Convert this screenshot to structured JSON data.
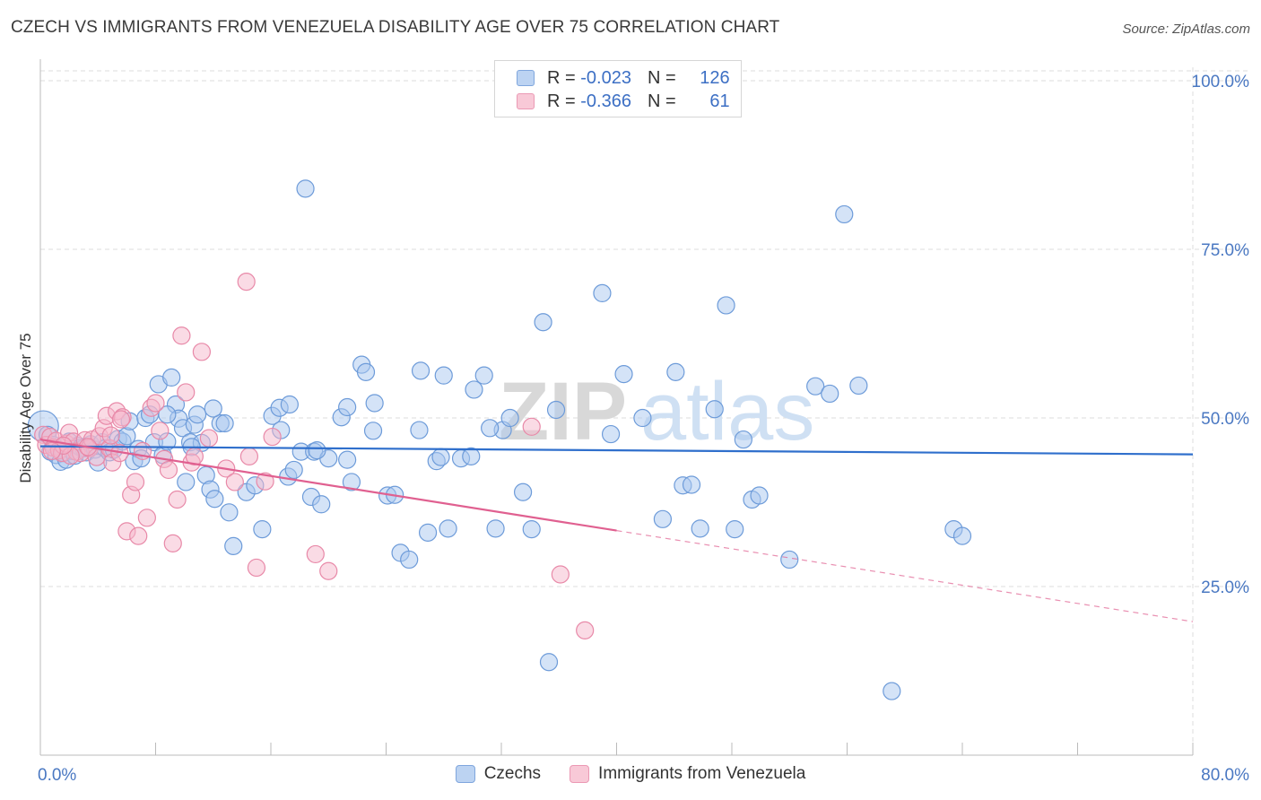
{
  "title": "CZECH VS IMMIGRANTS FROM VENEZUELA DISABILITY AGE OVER 75 CORRELATION CHART",
  "source": "Source: ZipAtlas.com",
  "watermark": {
    "part1": "ZIP",
    "part2": "atlas"
  },
  "legend": {
    "czechs": {
      "r_label": "R =",
      "r_value": "-0.023",
      "n_label": "N =",
      "n_value": "126"
    },
    "venezuela": {
      "r_label": "R =",
      "r_value": "-0.366",
      "n_label": "N =",
      "n_value": "61"
    }
  },
  "colors": {
    "czech_fill": "#a9c7ef",
    "czech_stroke": "#6d9bd9",
    "czech_line": "#2f6fcc",
    "ven_fill": "#f5b8cb",
    "ven_stroke": "#e889a8",
    "ven_line": "#e06090",
    "grid": "#dedede",
    "tick_text": "#4a78c2"
  },
  "chart_data": {
    "type": "scatter",
    "title": "CZECH VS IMMIGRANTS FROM VENEZUELA DISABILITY AGE OVER 75 CORRELATION CHART",
    "xlabel": "",
    "ylabel": "Disability Age Over 75",
    "xlim": [
      0,
      80
    ],
    "ylim": [
      0,
      102
    ],
    "x_tick_labels": [
      {
        "value": 0,
        "label": "0.0%"
      },
      {
        "value": 80,
        "label": "80.0%"
      }
    ],
    "y_tick_labels": [
      {
        "value": 25,
        "label": "25.0%"
      },
      {
        "value": 50,
        "label": "50.0%"
      },
      {
        "value": 75,
        "label": "75.0%"
      },
      {
        "value": 100,
        "label": "100.0%"
      }
    ],
    "grid": true,
    "series": [
      {
        "name": "Czechs",
        "trend": {
          "x": [
            0,
            80
          ],
          "y": [
            45.8,
            44.6
          ],
          "dashed_from": null
        },
        "points": [
          [
            0.2,
            48.8
          ],
          [
            0.5,
            47.5
          ],
          [
            0.7,
            45
          ],
          [
            0.9,
            46
          ],
          [
            1.1,
            44.5
          ],
          [
            1.3,
            45.3
          ],
          [
            1.4,
            43.5
          ],
          [
            1.6,
            44.8
          ],
          [
            1.8,
            43.8
          ],
          [
            2,
            46.5
          ],
          [
            2.2,
            45.1
          ],
          [
            2.4,
            44.4
          ],
          [
            2.6,
            45.9
          ],
          [
            2.8,
            45.6
          ],
          [
            3,
            45.5
          ],
          [
            3.2,
            44.9
          ],
          [
            3.5,
            46.1
          ],
          [
            3.8,
            45.3
          ],
          [
            4,
            43.4
          ],
          [
            4.3,
            46.4
          ],
          [
            4.5,
            45.5
          ],
          [
            4.8,
            44.9
          ],
          [
            5.1,
            45.3
          ],
          [
            5.4,
            46.9
          ],
          [
            5.7,
            46.5
          ],
          [
            6,
            47.3
          ],
          [
            6.2,
            49.5
          ],
          [
            6.5,
            43.6
          ],
          [
            6.8,
            45.4
          ],
          [
            7,
            44
          ],
          [
            7.3,
            50
          ],
          [
            7.6,
            50.5
          ],
          [
            7.9,
            46.4
          ],
          [
            8.2,
            55
          ],
          [
            8.5,
            44.5
          ],
          [
            8.8,
            46.5
          ],
          [
            9.1,
            56
          ],
          [
            9.4,
            52
          ],
          [
            9.6,
            49.9
          ],
          [
            9.9,
            48.5
          ],
          [
            10.1,
            40.5
          ],
          [
            10.4,
            46.4
          ],
          [
            10.7,
            49
          ],
          [
            10.9,
            50.5
          ],
          [
            11.2,
            46.3
          ],
          [
            11.5,
            41.5
          ],
          [
            11.8,
            39.4
          ],
          [
            12.1,
            38
          ],
          [
            12.5,
            49.2
          ],
          [
            12.8,
            49.2
          ],
          [
            13.1,
            36
          ],
          [
            13.4,
            31
          ],
          [
            14.3,
            39
          ],
          [
            14.9,
            40
          ],
          [
            15.4,
            33.5
          ],
          [
            16.1,
            50.3
          ],
          [
            16.6,
            51.5
          ],
          [
            17.2,
            41.3
          ],
          [
            17.6,
            42.3
          ],
          [
            18.1,
            45
          ],
          [
            18.4,
            84
          ],
          [
            18.8,
            38.3
          ],
          [
            19,
            45
          ],
          [
            19.5,
            37.2
          ],
          [
            20,
            44
          ],
          [
            20.9,
            50.1
          ],
          [
            21.3,
            51.6
          ],
          [
            21.6,
            40.5
          ],
          [
            22.3,
            57.9
          ],
          [
            22.6,
            56.8
          ],
          [
            23.2,
            52.2
          ],
          [
            24.1,
            38.5
          ],
          [
            24.6,
            38.6
          ],
          [
            25,
            30
          ],
          [
            25.6,
            29
          ],
          [
            26.4,
            57
          ],
          [
            26.9,
            33
          ],
          [
            27.5,
            43.6
          ],
          [
            28,
            56.3
          ],
          [
            28.3,
            33.6
          ],
          [
            29.2,
            44
          ],
          [
            30.1,
            54.2
          ],
          [
            30.8,
            56.3
          ],
          [
            31.6,
            33.6
          ],
          [
            32.1,
            48.2
          ],
          [
            32.6,
            50
          ],
          [
            33.5,
            39
          ],
          [
            34.1,
            33.5
          ],
          [
            34.9,
            64.2
          ],
          [
            35.3,
            13.8
          ],
          [
            35.8,
            51.2
          ],
          [
            39,
            68.5
          ],
          [
            39.6,
            47.6
          ],
          [
            40.5,
            56.5
          ],
          [
            41.8,
            50
          ],
          [
            43.2,
            35
          ],
          [
            44.1,
            56.8
          ],
          [
            44.6,
            40
          ],
          [
            45.2,
            40.1
          ],
          [
            45.8,
            33.6
          ],
          [
            46.8,
            51.3
          ],
          [
            47.6,
            66.7
          ],
          [
            48.2,
            33.5
          ],
          [
            48.8,
            46.8
          ],
          [
            49.4,
            37.9
          ],
          [
            49.9,
            38.5
          ],
          [
            52,
            29
          ],
          [
            53.8,
            54.7
          ],
          [
            54.8,
            53.6
          ],
          [
            55.8,
            80.2
          ],
          [
            56.8,
            54.8
          ],
          [
            59.1,
            9.5
          ],
          [
            63.4,
            33.5
          ],
          [
            64,
            32.5
          ],
          [
            17.3,
            52
          ],
          [
            27.8,
            44.2
          ],
          [
            29.9,
            44.3
          ],
          [
            16.7,
            48.2
          ],
          [
            8.8,
            50.5
          ],
          [
            10.5,
            45.7
          ],
          [
            12,
            51.4
          ],
          [
            19.2,
            45.2
          ],
          [
            21.3,
            43.8
          ],
          [
            26.3,
            48.2
          ],
          [
            31.2,
            48.5
          ],
          [
            23.1,
            48.1
          ]
        ]
      },
      {
        "name": "Immigrants from Venezuela",
        "trend": {
          "x": [
            0,
            80
          ],
          "y": [
            46.8,
            19.8
          ],
          "dashed_from": 40
        },
        "points": [
          [
            0.2,
            47.5
          ],
          [
            0.4,
            46
          ],
          [
            0.7,
            47.2
          ],
          [
            0.9,
            45.6
          ],
          [
            1.1,
            46.6
          ],
          [
            1.3,
            45.2
          ],
          [
            1.5,
            44.8
          ],
          [
            1.8,
            46.2
          ],
          [
            2,
            47.8
          ],
          [
            2.3,
            46.5
          ],
          [
            2.5,
            45
          ],
          [
            2.8,
            44.8
          ],
          [
            3.1,
            46.7
          ],
          [
            3.4,
            45.5
          ],
          [
            3.6,
            46.8
          ],
          [
            3.9,
            44.2
          ],
          [
            4.1,
            47.3
          ],
          [
            4.4,
            48.5
          ],
          [
            4.6,
            50.3
          ],
          [
            4.8,
            45.5
          ],
          [
            5,
            43.4
          ],
          [
            5.3,
            51
          ],
          [
            5.5,
            44.8
          ],
          [
            5.7,
            50.1
          ],
          [
            6,
            33.2
          ],
          [
            6.3,
            38.6
          ],
          [
            6.6,
            40.5
          ],
          [
            6.8,
            32.5
          ],
          [
            7.1,
            45.1
          ],
          [
            7.4,
            35.2
          ],
          [
            7.7,
            51.5
          ],
          [
            8,
            52.2
          ],
          [
            8.3,
            48.1
          ],
          [
            8.6,
            43.9
          ],
          [
            8.9,
            42.3
          ],
          [
            9.2,
            31.4
          ],
          [
            9.5,
            37.9
          ],
          [
            9.8,
            62.2
          ],
          [
            10.1,
            53.8
          ],
          [
            10.5,
            43.4
          ],
          [
            11.2,
            59.8
          ],
          [
            11.7,
            47
          ],
          [
            12.9,
            42.5
          ],
          [
            14.3,
            70.2
          ],
          [
            14.5,
            44.3
          ],
          [
            15,
            27.8
          ],
          [
            15.6,
            40.6
          ],
          [
            16.1,
            47.2
          ],
          [
            19.1,
            29.8
          ],
          [
            20,
            27.3
          ],
          [
            34.1,
            48.7
          ],
          [
            36.1,
            26.8
          ],
          [
            37.8,
            18.5
          ],
          [
            2.1,
            44.4
          ],
          [
            3.3,
            45.7
          ],
          [
            1.6,
            45.9
          ],
          [
            0.8,
            45.1
          ],
          [
            4.9,
            47.4
          ],
          [
            5.6,
            49.8
          ],
          [
            10.7,
            44.3
          ],
          [
            13.5,
            40.5
          ]
        ]
      }
    ]
  }
}
